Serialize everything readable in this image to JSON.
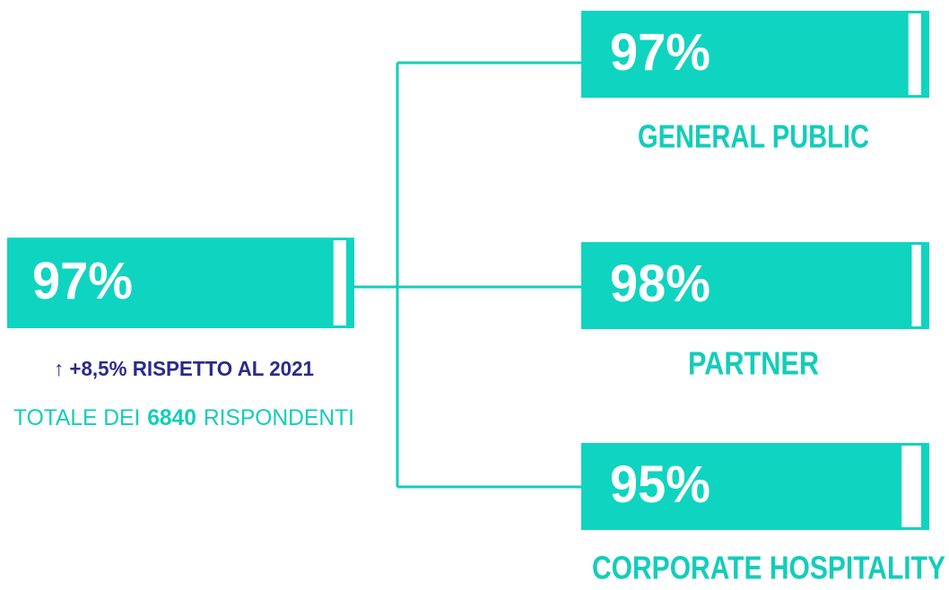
{
  "main": {
    "value": 97,
    "value_label": "97%",
    "change": "↑ +8,5% RISPETTO AL 2021",
    "total_prefix": "TOTALE DEI",
    "total_count": 6840,
    "total_suffix": "RISPONDENTI"
  },
  "groups": [
    {
      "name": "GENERAL PUBLIC",
      "value": 97,
      "value_label": "97%"
    },
    {
      "name": "PARTNER",
      "value": 98,
      "value_label": "98%"
    },
    {
      "name": "CORPORATE HOSPITALITY",
      "value": 95,
      "value_label": "95%"
    }
  ]
}
